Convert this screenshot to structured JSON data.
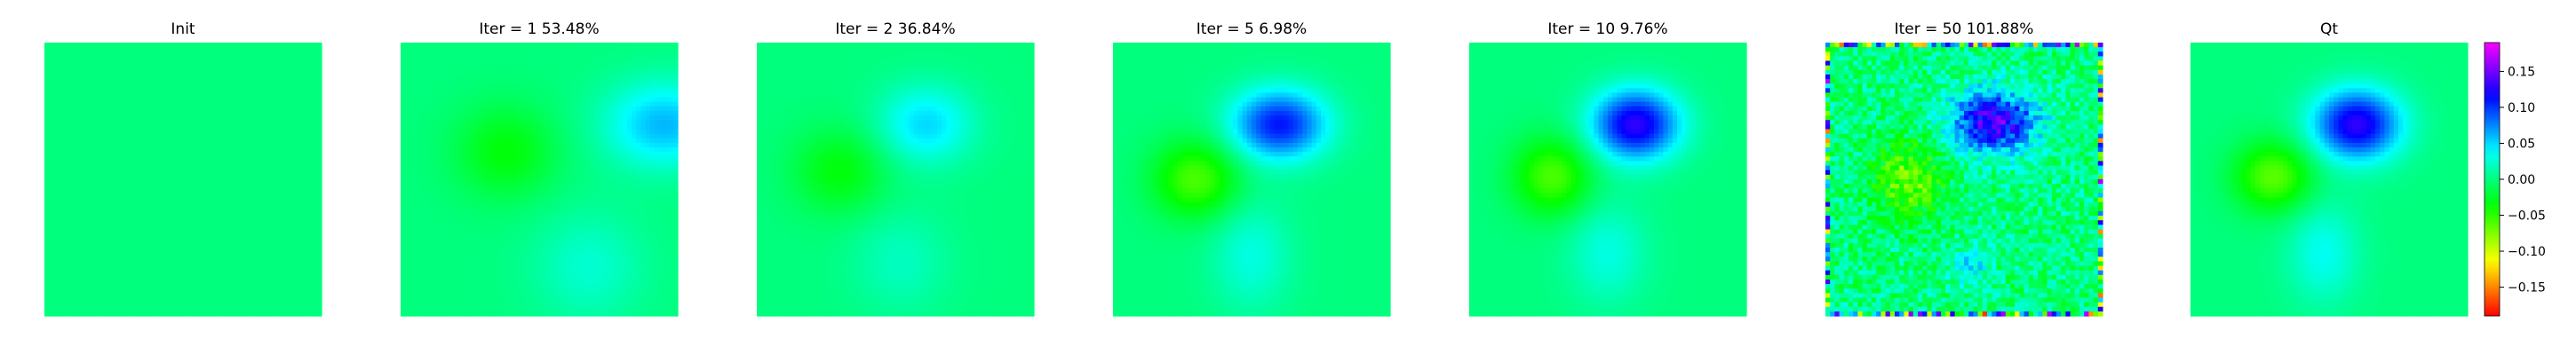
{
  "chart_data": {
    "type": "heatmap",
    "panels": [
      {
        "title": "Init",
        "field": {
          "background": 0.0,
          "blobs": []
        }
      },
      {
        "title": "Iter = 1    53.48%",
        "field": {
          "background": 0.0,
          "blobs": [
            {
              "cx": 0.38,
              "cy": 0.4,
              "amp": -0.035,
              "sx": 0.13,
              "sy": 0.12
            },
            {
              "cx": 0.95,
              "cy": 0.3,
              "amp": 0.06,
              "sx": 0.15,
              "sy": 0.11
            },
            {
              "cx": 0.68,
              "cy": 0.82,
              "amp": 0.025,
              "sx": 0.14,
              "sy": 0.14
            }
          ]
        }
      },
      {
        "title": "Iter = 2    36.84%",
        "field": {
          "background": 0.0,
          "blobs": [
            {
              "cx": 0.3,
              "cy": 0.47,
              "amp": -0.035,
              "sx": 0.12,
              "sy": 0.11
            },
            {
              "cx": 0.61,
              "cy": 0.3,
              "amp": 0.05,
              "sx": 0.12,
              "sy": 0.1
            },
            {
              "cx": 0.52,
              "cy": 0.8,
              "amp": 0.02,
              "sx": 0.12,
              "sy": 0.13
            }
          ]
        }
      },
      {
        "title": "Iter = 5    6.98%",
        "field": {
          "background": 0.0,
          "blobs": [
            {
              "cx": 0.3,
              "cy": 0.5,
              "amp": -0.06,
              "sx": 0.11,
              "sy": 0.1
            },
            {
              "cx": 0.6,
              "cy": 0.3,
              "amp": 0.11,
              "sx": 0.12,
              "sy": 0.09
            },
            {
              "cx": 0.5,
              "cy": 0.78,
              "amp": 0.03,
              "sx": 0.1,
              "sy": 0.14
            }
          ]
        }
      },
      {
        "title": "Iter = 10    9.76%",
        "field": {
          "background": 0.0,
          "blobs": [
            {
              "cx": 0.3,
              "cy": 0.49,
              "amp": -0.06,
              "sx": 0.1,
              "sy": 0.1
            },
            {
              "cx": 0.6,
              "cy": 0.3,
              "amp": 0.13,
              "sx": 0.11,
              "sy": 0.09
            },
            {
              "cx": 0.5,
              "cy": 0.77,
              "amp": 0.03,
              "sx": 0.1,
              "sy": 0.13
            }
          ]
        }
      },
      {
        "title": "Iter = 50    101.88%",
        "field": {
          "background": 0.0,
          "noise": 0.03,
          "blobs": [
            {
              "cx": 0.3,
              "cy": 0.5,
              "amp": -0.07,
              "sx": 0.09,
              "sy": 0.1
            },
            {
              "cx": 0.61,
              "cy": 0.29,
              "amp": 0.14,
              "sx": 0.11,
              "sy": 0.08
            },
            {
              "cx": 0.52,
              "cy": 0.82,
              "amp": 0.04,
              "sx": 0.05,
              "sy": 0.05
            }
          ]
        }
      },
      {
        "title": "Qt",
        "field": {
          "background": 0.0,
          "blobs": [
            {
              "cx": 0.3,
              "cy": 0.49,
              "amp": -0.065,
              "sx": 0.1,
              "sy": 0.09
            },
            {
              "cx": 0.6,
              "cy": 0.3,
              "amp": 0.13,
              "sx": 0.11,
              "sy": 0.09
            },
            {
              "cx": 0.48,
              "cy": 0.77,
              "amp": 0.035,
              "sx": 0.09,
              "sy": 0.13
            }
          ]
        }
      }
    ],
    "colorbar": {
      "colormap": "gist_rainbow",
      "vmin": -0.19,
      "vmax": 0.19,
      "ticks": [
        0.15,
        0.1,
        0.05,
        0.0,
        -0.05,
        -0.1,
        -0.15
      ],
      "tick_labels": [
        "0.15",
        "0.10",
        "0.05",
        "0.00",
        "−0.05",
        "−0.10",
        "−0.15"
      ]
    }
  }
}
